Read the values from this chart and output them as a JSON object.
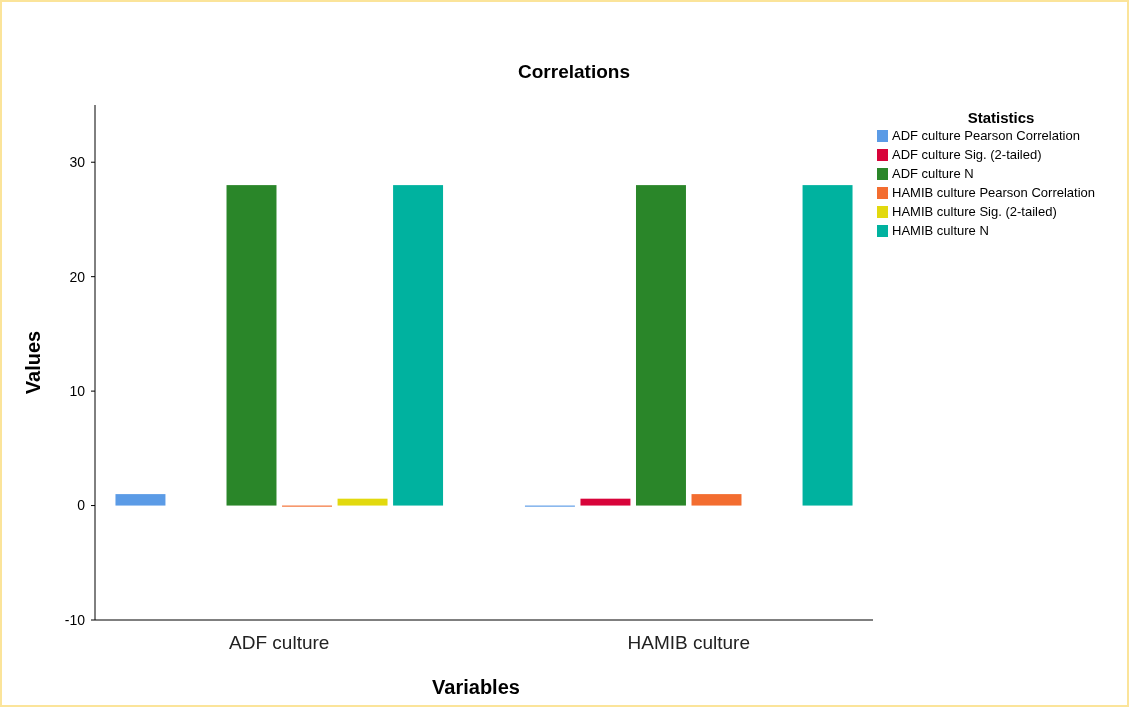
{
  "chart_data": {
    "type": "bar",
    "title": "Correlations",
    "xlabel": "Variables",
    "ylabel": "Values",
    "legend_title": "Statistics",
    "categories": [
      "ADF culture",
      "HAMIB culture"
    ],
    "series": [
      {
        "name": "ADF culture Pearson Correlation",
        "color": "#5b9be6",
        "values": [
          1,
          -0.1
        ]
      },
      {
        "name": "ADF culture Sig. (2-tailed)",
        "color": "#d8043a",
        "values": [
          null,
          0.6
        ]
      },
      {
        "name": "ADF culture N",
        "color": "#2a8629",
        "values": [
          28,
          28
        ]
      },
      {
        "name": "HAMIB culture Pearson Correlation",
        "color": "#f36d30",
        "values": [
          -0.1,
          1
        ]
      },
      {
        "name": "HAMIB culture Sig. (2-tailed)",
        "color": "#e2d90e",
        "values": [
          0.6,
          null
        ]
      },
      {
        "name": "HAMIB culture N",
        "color": "#00b29f",
        "values": [
          28,
          28
        ]
      }
    ],
    "ylim": [
      -10,
      35
    ],
    "yticks": [
      -10,
      0,
      10,
      20,
      30
    ],
    "grid": false,
    "legend": "top right"
  }
}
